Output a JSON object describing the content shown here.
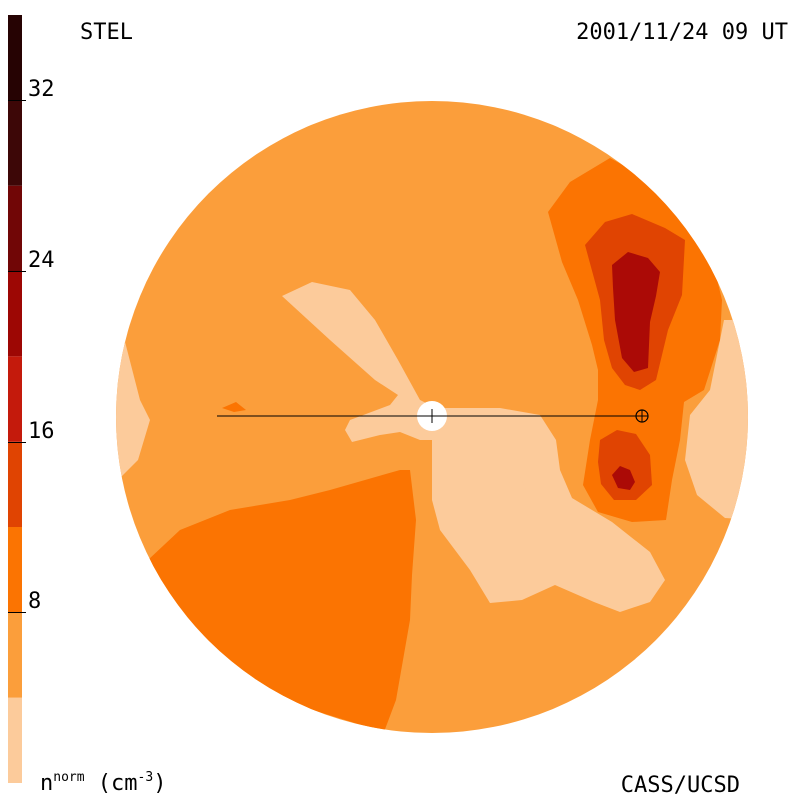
{
  "header": {
    "station": "STEL",
    "datetime": "2001/11/24 09 UT"
  },
  "footer": {
    "unit_prefix": "n",
    "unit_sup": "norm",
    "unit_suffix": " (cm",
    "unit_exp": "-3",
    "unit_close": ")",
    "credit": "CASS/UCSD"
  },
  "colors": {
    "level1": "#fccb9b",
    "level2": "#fb9e3b",
    "level3": "#fb7402",
    "level4": "#e04402",
    "level5": "#c41a0c",
    "level6": "#9d0704",
    "level7": "#710606",
    "level8": "#3d0707",
    "level9": "#260303"
  },
  "chart_data": {
    "type": "heatmap",
    "title": "STEL",
    "subtitle": "2001/11/24 09 UT",
    "colorbar": {
      "label": "n^norm (cm^-3)",
      "range": [
        0,
        36
      ],
      "ticks": [
        8,
        16,
        24,
        32
      ],
      "tick_labels": [
        "8",
        "16",
        "24",
        "32"
      ],
      "levels": [
        {
          "from": 0,
          "to": 4,
          "color": "#fccb9b"
        },
        {
          "from": 4,
          "to": 8,
          "color": "#fb9e3b"
        },
        {
          "from": 8,
          "to": 12,
          "color": "#fb7402"
        },
        {
          "from": 12,
          "to": 16,
          "color": "#e04402"
        },
        {
          "from": 16,
          "to": 20,
          "color": "#c41a0c"
        },
        {
          "from": 20,
          "to": 24,
          "color": "#9d0704"
        },
        {
          "from": 24,
          "to": 28,
          "color": "#710606"
        },
        {
          "from": 28,
          "to": 32,
          "color": "#3d0707"
        },
        {
          "from": 32,
          "to": 36,
          "color": "#260303"
        }
      ]
    },
    "features": [
      {
        "name": "sun",
        "symbol": "circle"
      },
      {
        "name": "earth",
        "symbol": "circled-plus"
      }
    ]
  }
}
